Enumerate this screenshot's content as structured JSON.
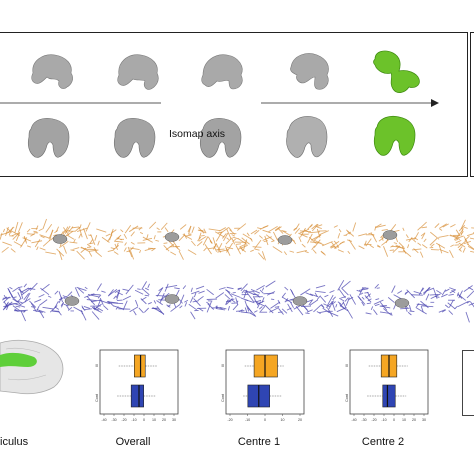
{
  "top_panel": {
    "axis_label": "Isomap axis",
    "shape_colors": {
      "grey": "#a9a9a9",
      "green": "#6cc22a"
    }
  },
  "brain_panel": {
    "caption": "iculus",
    "highlight_color": "#5fcf3a"
  },
  "strips": {
    "orange_color": "#d9933f",
    "blue_color": "#4a45b0"
  },
  "boxplots": [
    {
      "caption": "Overall",
      "categories": [
        "Cont",
        "Ill"
      ],
      "x_ticks": [
        "-40",
        "-30",
        "-20",
        "-10",
        "0",
        "10",
        "20",
        "30"
      ],
      "colors": {
        "Ill": "#f5a623",
        "Cont": "#2f45b3"
      }
    },
    {
      "caption": "Centre 1",
      "categories": [
        "Cont",
        "Ill"
      ],
      "x_ticks": [
        "-20",
        "-10",
        "0",
        "10",
        "20"
      ],
      "colors": {
        "Ill": "#f5a623",
        "Cont": "#2f45b3"
      }
    },
    {
      "caption": "Centre 2",
      "categories": [
        "Cont",
        "Ill"
      ],
      "x_ticks": [
        "-40",
        "-30",
        "-20",
        "-10",
        "0",
        "10",
        "20",
        "30"
      ],
      "colors": {
        "Ill": "#f5a623",
        "Cont": "#2f45b3"
      }
    }
  ]
}
